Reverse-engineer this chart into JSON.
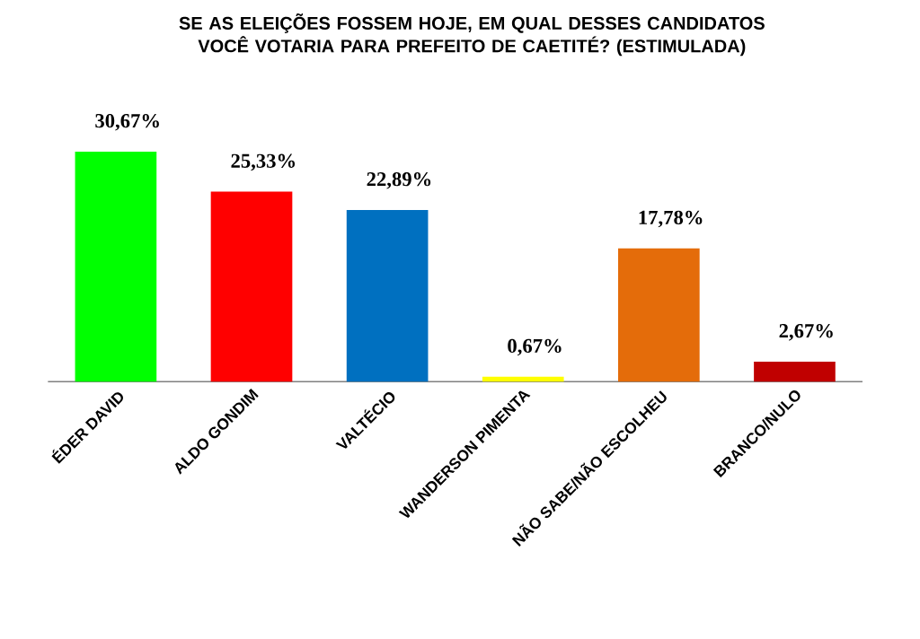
{
  "chart_data": {
    "type": "bar",
    "title": "SE AS ELEIÇÕES FOSSEM HOJE, EM QUAL DESSES CANDIDATOS VOCÊ VOTARIA PARA PREFEITO DE CAETITÉ? (ESTIMULADA)",
    "categories": [
      "ÉDER DAVID",
      "ALDO GONDIM",
      "VALTÉCIO",
      "WANDERSON  PIMENTA",
      "NÃO SABE/NÃO ESCOLHEU",
      "BRANCO/NULO"
    ],
    "values": [
      30.67,
      25.33,
      22.89,
      0.67,
      17.78,
      2.67
    ],
    "value_labels": [
      "30,67%",
      "25,33%",
      "22,89%",
      "0,67%",
      "17,78%",
      "2,67%"
    ],
    "colors": [
      "#00ff00",
      "#ff0000",
      "#0070c0",
      "#ffff00",
      "#e46c0a",
      "#c00000"
    ],
    "grid": false
  }
}
